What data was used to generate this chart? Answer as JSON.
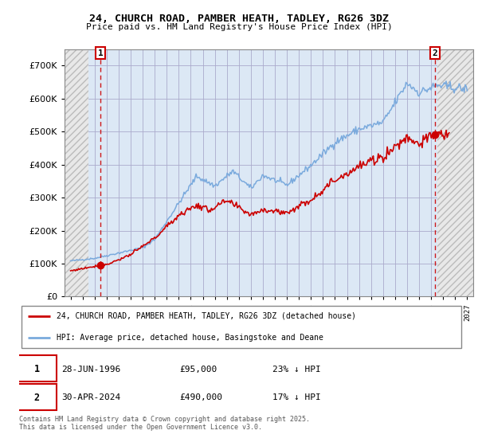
{
  "title": "24, CHURCH ROAD, PAMBER HEATH, TADLEY, RG26 3DZ",
  "subtitle": "Price paid vs. HM Land Registry's House Price Index (HPI)",
  "legend_line1": "24, CHURCH ROAD, PAMBER HEATH, TADLEY, RG26 3DZ (detached house)",
  "legend_line2": "HPI: Average price, detached house, Basingstoke and Deane",
  "footnote": "Contains HM Land Registry data © Crown copyright and database right 2025.\nThis data is licensed under the Open Government Licence v3.0.",
  "point1_date": "28-JUN-1996",
  "point1_price": "£95,000",
  "point1_hpi": "23% ↓ HPI",
  "point2_date": "30-APR-2024",
  "point2_price": "£490,000",
  "point2_hpi": "17% ↓ HPI",
  "price_color": "#cc0000",
  "hpi_color": "#7aaadd",
  "point1_x": 1996.5,
  "point1_y": 95000,
  "point2_x": 2024.33,
  "point2_y": 490000,
  "ylim": [
    0,
    750000
  ],
  "xlim": [
    1993.5,
    2027.5
  ],
  "hatch_left_end": 1995.5,
  "hatch_right_start": 2024.5,
  "plot_bg_color": "#dce8f5",
  "hatch_bg_color": "#e0e0e0",
  "hatch_line_color": "#bbbbbb"
}
